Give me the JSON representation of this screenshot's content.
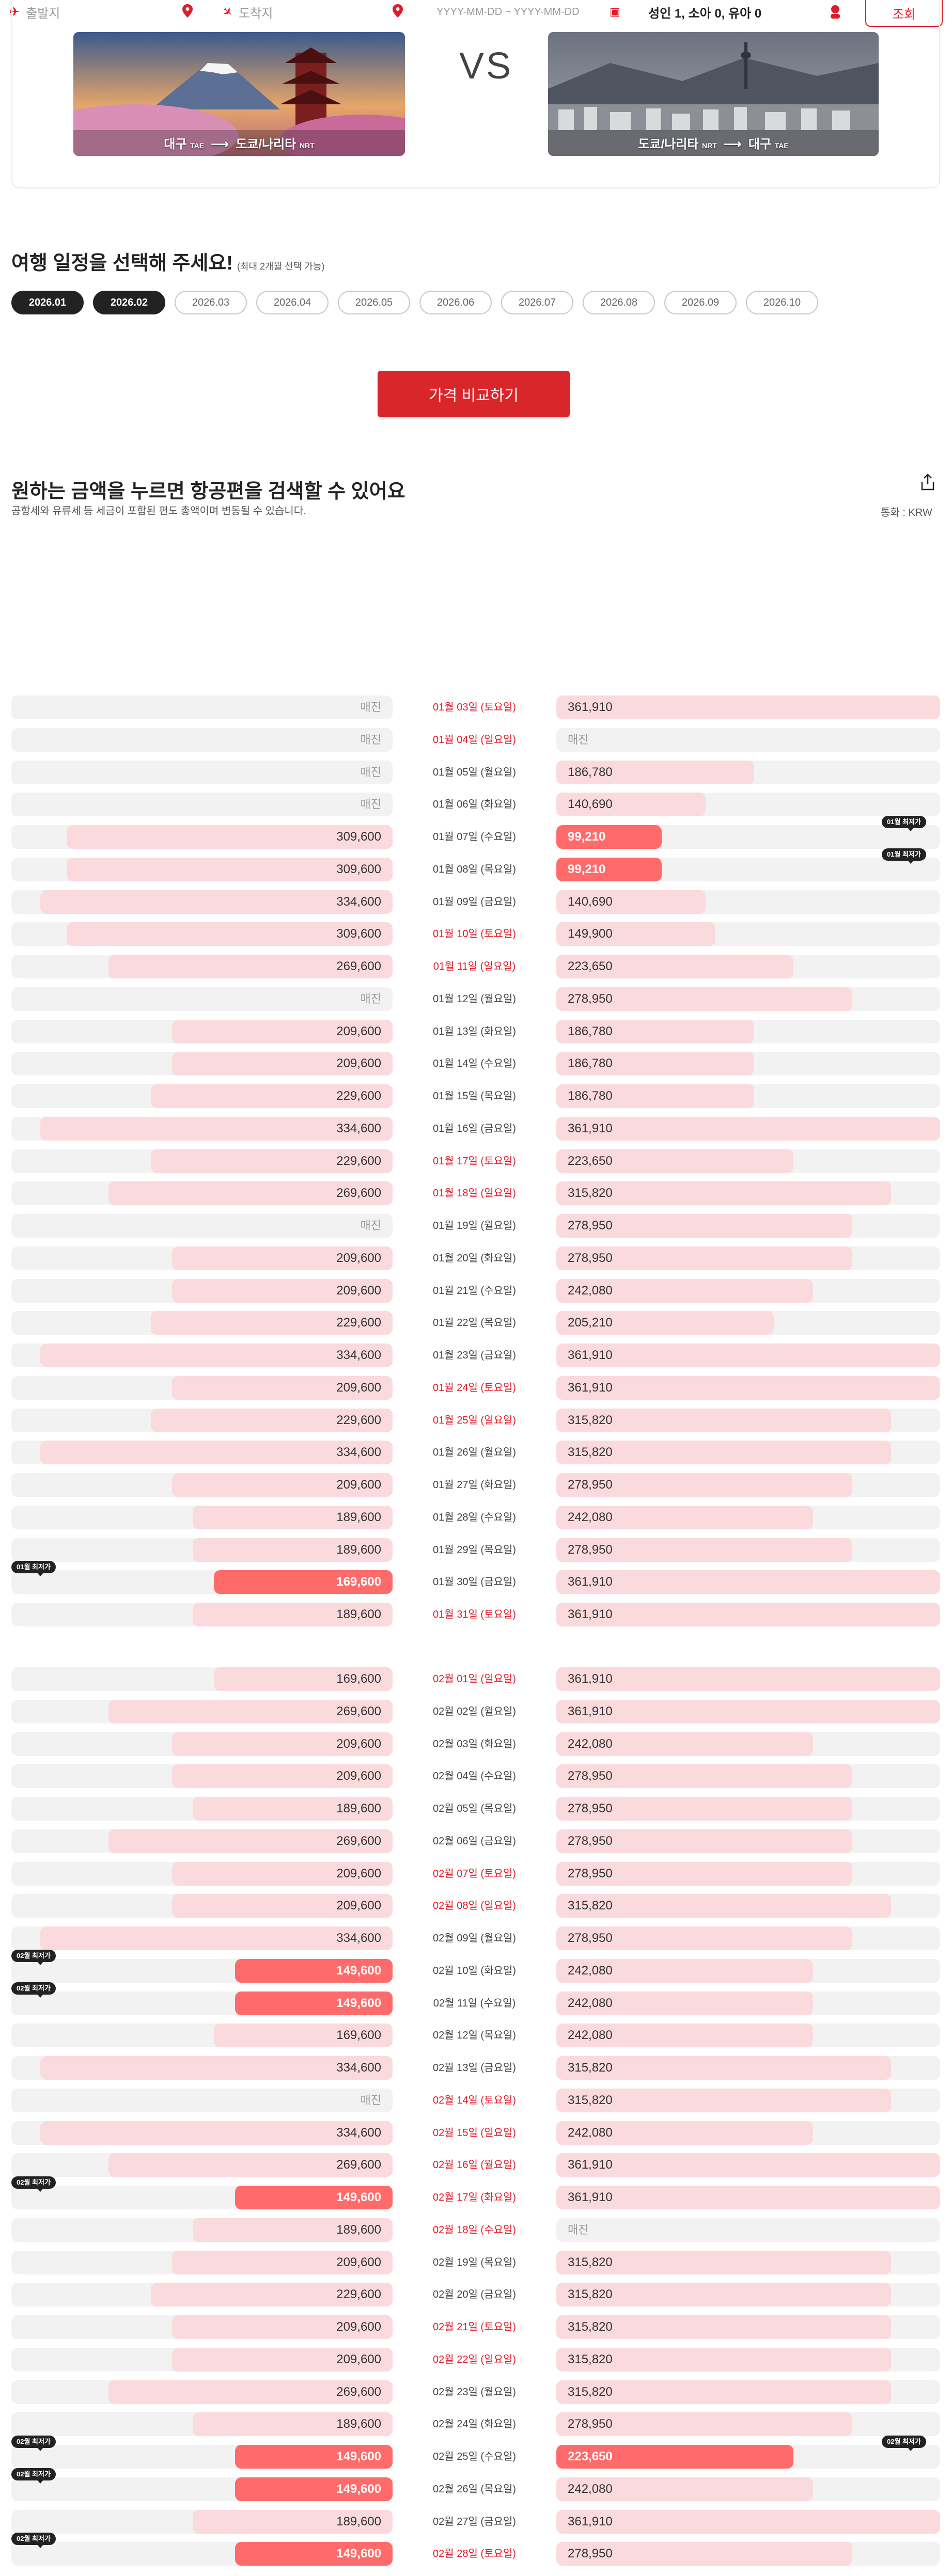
{
  "search": {
    "origin_placeholder": "출발지",
    "destination_placeholder": "도착지",
    "date_range": "YYYY-MM-DD ~ YYYY-MM-DD",
    "passengers": "성인 1, 소아 0, 유아 0",
    "search_label": "조회"
  },
  "compare": {
    "route_a": {
      "from": "대구",
      "from_code": "TAE",
      "to": "도쿄/나리타",
      "to_code": "NRT"
    },
    "vs": "VS",
    "route_b": {
      "from": "도쿄/나리타",
      "from_code": "NRT",
      "to": "대구",
      "to_code": "TAE"
    }
  },
  "itinerary": {
    "title": "여행 일정을 선택해 주세요!",
    "hint": "(최대 2개월 선택 가능)",
    "months": [
      {
        "label": "2026.01",
        "selected": true
      },
      {
        "label": "2026.02",
        "selected": true
      },
      {
        "label": "2026.03",
        "selected": false
      },
      {
        "label": "2026.04",
        "selected": false
      },
      {
        "label": "2026.05",
        "selected": false
      },
      {
        "label": "2026.06",
        "selected": false
      },
      {
        "label": "2026.07",
        "selected": false
      },
      {
        "label": "2026.08",
        "selected": false
      },
      {
        "label": "2026.09",
        "selected": false
      },
      {
        "label": "2026.10",
        "selected": false
      }
    ],
    "compare_button": "가격 비교하기"
  },
  "results": {
    "title": "원하는 금액을 누르면 항공편을 검색할 수 있어요",
    "description": "공항세와 유류세 등 세금이 포함된 편도 총액이며 변동될 수 있습니다.",
    "currency": "통화 : KRW",
    "sold_out": "매진",
    "max_price": 361910
  },
  "colors": {
    "brand_red": "#e11c2a",
    "bar_light": "#fadadd",
    "bar_low": "#ff6b6b",
    "track": "#f2f2f2"
  },
  "fares": [
    {
      "month": "01",
      "days": [
        {
          "d": "01월 03일 (토요일)",
          "h": true,
          "l": null,
          "r": 361910
        },
        {
          "d": "01월 04일 (일요일)",
          "h": true,
          "l": null,
          "r": null
        },
        {
          "d": "01월 05일 (월요일)",
          "h": false,
          "l": null,
          "r": 186780
        },
        {
          "d": "01월 06일 (화요일)",
          "h": false,
          "l": null,
          "r": 140690
        },
        {
          "d": "01월 07일 (수요일)",
          "h": false,
          "l": 309600,
          "r": 99210,
          "rlow": "01월 최저가"
        },
        {
          "d": "01월 08일 (목요일)",
          "h": false,
          "l": 309600,
          "r": 99210,
          "rlow": "01월 최저가"
        },
        {
          "d": "01월 09일 (금요일)",
          "h": false,
          "l": 334600,
          "r": 140690
        },
        {
          "d": "01월 10일 (토요일)",
          "h": true,
          "l": 309600,
          "r": 149900
        },
        {
          "d": "01월 11일 (일요일)",
          "h": true,
          "l": 269600,
          "r": 223650
        },
        {
          "d": "01월 12일 (월요일)",
          "h": false,
          "l": null,
          "r": 278950
        },
        {
          "d": "01월 13일 (화요일)",
          "h": false,
          "l": 209600,
          "r": 186780
        },
        {
          "d": "01월 14일 (수요일)",
          "h": false,
          "l": 209600,
          "r": 186780
        },
        {
          "d": "01월 15일 (목요일)",
          "h": false,
          "l": 229600,
          "r": 186780
        },
        {
          "d": "01월 16일 (금요일)",
          "h": false,
          "l": 334600,
          "r": 361910
        },
        {
          "d": "01월 17일 (토요일)",
          "h": true,
          "l": 229600,
          "r": 223650
        },
        {
          "d": "01월 18일 (일요일)",
          "h": true,
          "l": 269600,
          "r": 315820
        },
        {
          "d": "01월 19일 (월요일)",
          "h": false,
          "l": null,
          "r": 278950
        },
        {
          "d": "01월 20일 (화요일)",
          "h": false,
          "l": 209600,
          "r": 278950
        },
        {
          "d": "01월 21일 (수요일)",
          "h": false,
          "l": 209600,
          "r": 242080
        },
        {
          "d": "01월 22일 (목요일)",
          "h": false,
          "l": 229600,
          "r": 205210
        },
        {
          "d": "01월 23일 (금요일)",
          "h": false,
          "l": 334600,
          "r": 361910
        },
        {
          "d": "01월 24일 (토요일)",
          "h": true,
          "l": 209600,
          "r": 361910
        },
        {
          "d": "01월 25일 (일요일)",
          "h": true,
          "l": 229600,
          "r": 315820
        },
        {
          "d": "01월 26일 (월요일)",
          "h": false,
          "l": 334600,
          "r": 315820
        },
        {
          "d": "01월 27일 (화요일)",
          "h": false,
          "l": 209600,
          "r": 278950
        },
        {
          "d": "01월 28일 (수요일)",
          "h": false,
          "l": 189600,
          "r": 242080
        },
        {
          "d": "01월 29일 (목요일)",
          "h": false,
          "l": 189600,
          "r": 278950
        },
        {
          "d": "01월 30일 (금요일)",
          "h": false,
          "l": 169600,
          "r": 361910,
          "llow": "01월 최저가"
        },
        {
          "d": "01월 31일 (토요일)",
          "h": true,
          "l": 189600,
          "r": 361910
        }
      ]
    },
    {
      "month": "02",
      "days": [
        {
          "d": "02월 01일 (일요일)",
          "h": true,
          "l": 169600,
          "r": 361910
        },
        {
          "d": "02월 02일 (월요일)",
          "h": false,
          "l": 269600,
          "r": 361910
        },
        {
          "d": "02월 03일 (화요일)",
          "h": false,
          "l": 209600,
          "r": 242080
        },
        {
          "d": "02월 04일 (수요일)",
          "h": false,
          "l": 209600,
          "r": 278950
        },
        {
          "d": "02월 05일 (목요일)",
          "h": false,
          "l": 189600,
          "r": 278950
        },
        {
          "d": "02월 06일 (금요일)",
          "h": false,
          "l": 269600,
          "r": 278950
        },
        {
          "d": "02월 07일 (토요일)",
          "h": true,
          "l": 209600,
          "r": 278950
        },
        {
          "d": "02월 08일 (일요일)",
          "h": true,
          "l": 209600,
          "r": 315820
        },
        {
          "d": "02월 09일 (월요일)",
          "h": false,
          "l": 334600,
          "r": 278950
        },
        {
          "d": "02월 10일 (화요일)",
          "h": false,
          "l": 149600,
          "r": 242080,
          "llow": "02월 최저가"
        },
        {
          "d": "02월 11일 (수요일)",
          "h": false,
          "l": 149600,
          "r": 242080,
          "llow": "02월 최저가"
        },
        {
          "d": "02월 12일 (목요일)",
          "h": false,
          "l": 169600,
          "r": 242080
        },
        {
          "d": "02월 13일 (금요일)",
          "h": false,
          "l": 334600,
          "r": 315820
        },
        {
          "d": "02월 14일 (토요일)",
          "h": true,
          "l": null,
          "r": 315820
        },
        {
          "d": "02월 15일 (일요일)",
          "h": true,
          "l": 334600,
          "r": 242080
        },
        {
          "d": "02월 16일 (월요일)",
          "h": true,
          "l": 269600,
          "r": 361910
        },
        {
          "d": "02월 17일 (화요일)",
          "h": true,
          "l": 149600,
          "r": 361910,
          "llow": "02월 최저가"
        },
        {
          "d": "02월 18일 (수요일)",
          "h": true,
          "l": 189600,
          "r": null
        },
        {
          "d": "02월 19일 (목요일)",
          "h": false,
          "l": 209600,
          "r": 315820
        },
        {
          "d": "02월 20일 (금요일)",
          "h": false,
          "l": 229600,
          "r": 315820
        },
        {
          "d": "02월 21일 (토요일)",
          "h": true,
          "l": 209600,
          "r": 315820
        },
        {
          "d": "02월 22일 (일요일)",
          "h": true,
          "l": 209600,
          "r": 315820
        },
        {
          "d": "02월 23일 (월요일)",
          "h": false,
          "l": 269600,
          "r": 315820
        },
        {
          "d": "02월 24일 (화요일)",
          "h": false,
          "l": 189600,
          "r": 278950
        },
        {
          "d": "02월 25일 (수요일)",
          "h": false,
          "l": 149600,
          "r": 223650,
          "llow": "02월 최저가",
          "rlow": "02월 최저가"
        },
        {
          "d": "02월 26일 (목요일)",
          "h": false,
          "l": 149600,
          "r": 242080,
          "llow": "02월 최저가"
        },
        {
          "d": "02월 27일 (금요일)",
          "h": false,
          "l": 189600,
          "r": 361910
        },
        {
          "d": "02월 28일 (토요일)",
          "h": true,
          "l": 149600,
          "r": 278950,
          "llow": "02월 최저가"
        }
      ]
    }
  ]
}
